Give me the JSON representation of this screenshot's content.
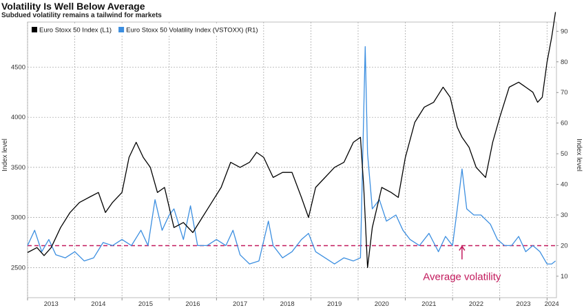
{
  "chart_data": {
    "type": "line",
    "title": "Volatility Is Well Below Average",
    "subtitle": "Subdued volatility remains a tailwind for markets",
    "ylabel_left": "Index level",
    "ylabel_right": "Index level",
    "x_ticks": [
      "2013",
      "2014",
      "2015",
      "2016",
      "2017",
      "2018",
      "2019",
      "2020",
      "2021",
      "2022",
      "2023",
      "2024"
    ],
    "xlim": [
      2013.0,
      2024.2
    ],
    "ylim_left": [
      2200,
      4950
    ],
    "yticks_left": [
      2500,
      3000,
      3500,
      4000,
      4500
    ],
    "ylim_right": [
      3,
      93
    ],
    "yticks_right": [
      10,
      20,
      30,
      40,
      50,
      60,
      70,
      80,
      90
    ],
    "grid": true,
    "legend_position": "top-left",
    "average_line": {
      "value": 20,
      "axis": "right",
      "color": "#c2185b",
      "label": "Average volatility"
    },
    "series": [
      {
        "name": "Euro Stoxx 50 Index (L1)",
        "axis": "left",
        "color": "#000000",
        "x": [
          2013.0,
          2013.2,
          2013.35,
          2013.5,
          2013.7,
          2013.9,
          2014.1,
          2014.3,
          2014.5,
          2014.65,
          2014.8,
          2015.0,
          2015.15,
          2015.3,
          2015.45,
          2015.6,
          2015.75,
          2015.9,
          2016.1,
          2016.3,
          2016.5,
          2016.7,
          2016.9,
          2017.1,
          2017.3,
          2017.5,
          2017.7,
          2017.85,
          2018.0,
          2018.2,
          2018.4,
          2018.6,
          2018.8,
          2018.95,
          2019.1,
          2019.3,
          2019.5,
          2019.7,
          2019.9,
          2020.05,
          2020.12,
          2020.2,
          2020.3,
          2020.5,
          2020.7,
          2020.85,
          2021.0,
          2021.2,
          2021.4,
          2021.6,
          2021.8,
          2021.95,
          2022.1,
          2022.2,
          2022.35,
          2022.5,
          2022.7,
          2022.85,
          2023.0,
          2023.2,
          2023.4,
          2023.55,
          2023.7,
          2023.8,
          2023.9,
          2024.0,
          2024.1,
          2024.18
        ],
        "y": [
          2650,
          2700,
          2620,
          2700,
          2900,
          3050,
          3150,
          3200,
          3250,
          3050,
          3150,
          3250,
          3600,
          3750,
          3600,
          3500,
          3250,
          3300,
          2900,
          2950,
          2850,
          3000,
          3150,
          3300,
          3550,
          3500,
          3550,
          3650,
          3600,
          3400,
          3450,
          3450,
          3200,
          3000,
          3300,
          3400,
          3500,
          3550,
          3750,
          3800,
          3300,
          2500,
          2900,
          3300,
          3250,
          3200,
          3600,
          3950,
          4100,
          4150,
          4300,
          4200,
          3900,
          3800,
          3700,
          3500,
          3400,
          3750,
          4000,
          4300,
          4350,
          4300,
          4250,
          4150,
          4200,
          4550,
          4800,
          5050
        ]
      },
      {
        "name": "Euro Stoxx 50 Volatility Index (VSTOXX) (R1)",
        "axis": "right",
        "color": "#3b8ee0",
        "x": [
          2013.0,
          2013.15,
          2013.3,
          2013.45,
          2013.6,
          2013.8,
          2014.0,
          2014.2,
          2014.4,
          2014.6,
          2014.8,
          2015.0,
          2015.2,
          2015.4,
          2015.55,
          2015.7,
          2015.85,
          2016.0,
          2016.1,
          2016.3,
          2016.45,
          2016.6,
          2016.8,
          2017.0,
          2017.2,
          2017.35,
          2017.5,
          2017.7,
          2017.9,
          2018.1,
          2018.2,
          2018.4,
          2018.6,
          2018.8,
          2018.95,
          2019.1,
          2019.3,
          2019.5,
          2019.7,
          2019.9,
          2020.05,
          2020.15,
          2020.2,
          2020.3,
          2020.45,
          2020.6,
          2020.8,
          2020.95,
          2021.1,
          2021.3,
          2021.5,
          2021.7,
          2021.85,
          2022.0,
          2022.1,
          2022.2,
          2022.3,
          2022.45,
          2022.6,
          2022.8,
          2022.95,
          2023.1,
          2023.25,
          2023.4,
          2023.55,
          2023.7,
          2023.85,
          2024.0,
          2024.1,
          2024.18
        ],
        "y": [
          20,
          25,
          18,
          22,
          17,
          16,
          18,
          15,
          16,
          21,
          20,
          22,
          20,
          25,
          20,
          35,
          25,
          30,
          32,
          22,
          33,
          20,
          20,
          22,
          20,
          25,
          17,
          14,
          15,
          28,
          20,
          16,
          18,
          22,
          24,
          18,
          16,
          14,
          16,
          15,
          16,
          85,
          50,
          32,
          35,
          28,
          30,
          25,
          22,
          20,
          24,
          18,
          23,
          20,
          32,
          45,
          32,
          30,
          30,
          27,
          22,
          20,
          20,
          23,
          18,
          20,
          18,
          14,
          14,
          15
        ]
      }
    ]
  }
}
